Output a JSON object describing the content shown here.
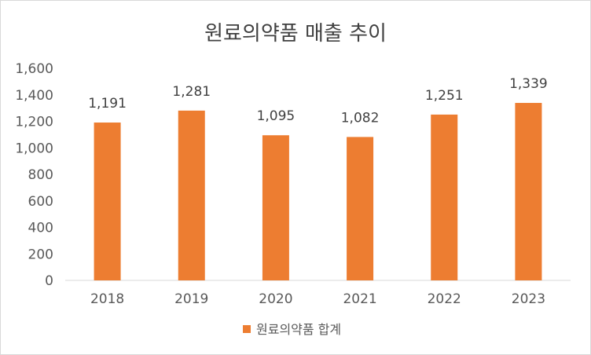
{
  "chart_data": {
    "type": "bar",
    "title": "원료의약품 매출 추이",
    "categories": [
      "2018",
      "2019",
      "2020",
      "2021",
      "2022",
      "2023"
    ],
    "series": [
      {
        "name": "원료의약품 합계",
        "values": [
          1191,
          1281,
          1095,
          1082,
          1251,
          1339
        ],
        "color": "#ed7d31"
      }
    ],
    "data_labels": [
      "1,191",
      "1,281",
      "1,095",
      "1,082",
      "1,251",
      "1,339"
    ],
    "y_ticks": [
      "0",
      "200",
      "400",
      "600",
      "800",
      "1,000",
      "1,200",
      "1,400",
      "1,600"
    ],
    "ylim": [
      0,
      1600
    ],
    "grid": false,
    "legend_position": "bottom"
  }
}
